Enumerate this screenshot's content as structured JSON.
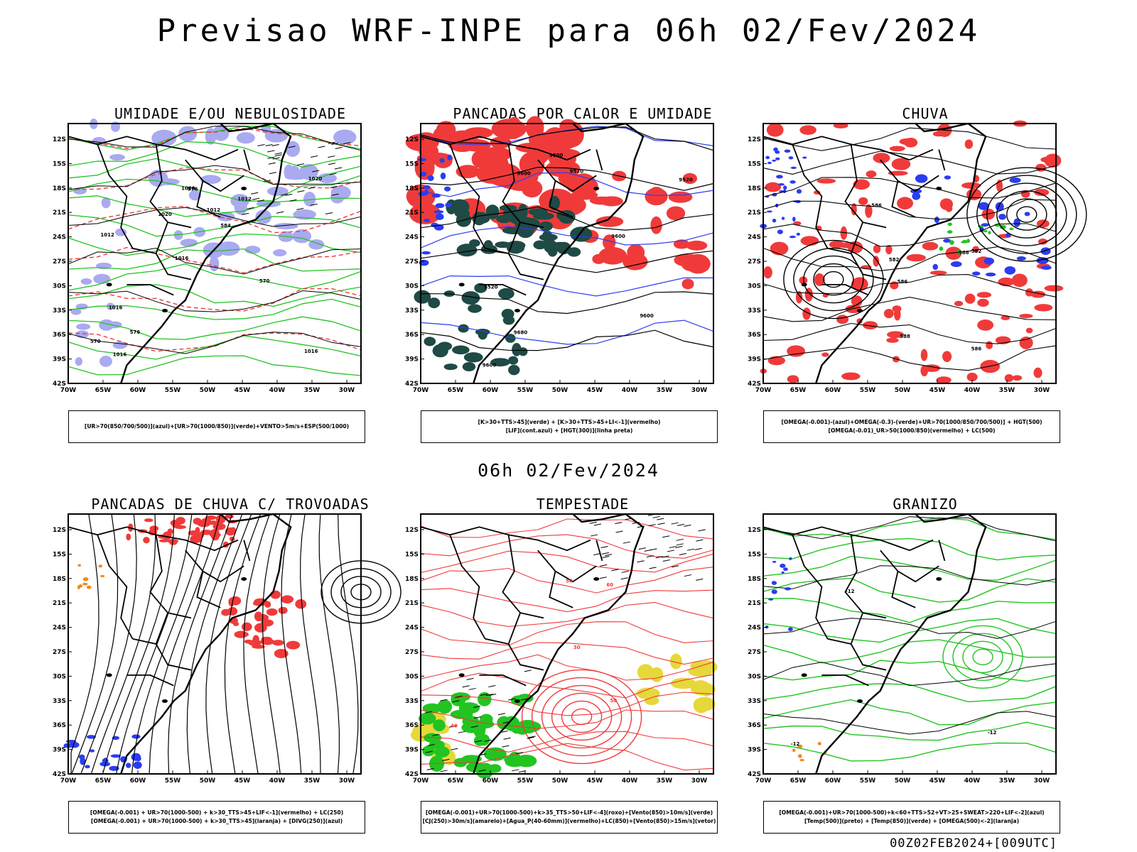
{
  "title": "Previsao WRF-INPE  para 06h 02/Fev/2024",
  "subtitle": "06h 02/Fev/2024",
  "run_stamp": "00Z02FEB2024+[009UTC]",
  "axes": {
    "lat_labels": [
      "12S",
      "15S",
      "18S",
      "21S",
      "24S",
      "27S",
      "30S",
      "33S",
      "36S",
      "39S",
      "42S"
    ],
    "lon_labels": [
      "70W",
      "65W",
      "60W",
      "55W",
      "50W",
      "45W",
      "40W",
      "35W",
      "30W"
    ]
  },
  "panels": [
    {
      "title": "UMIDADE E/OU NEBULOSIDADE",
      "legend": [
        "[UR>70(850/700/500)](azul)+[UR>70(1000/850)](verde)+VENTO>5m/s+ESP(500/1000)"
      ],
      "contour_labels": [
        "1016",
        "1012",
        "1020",
        "1016",
        "1012",
        "1016",
        "1020",
        "1012",
        "1016",
        "1020",
        "570",
        "576",
        "576",
        "584",
        "570"
      ]
    },
    {
      "title": "PANCADAS POR CALOR E UMIDADE",
      "legend": [
        "[K>30+TTS>45](verde) + [K>30+TTS>45+LI<-1](vermelho)",
        "[LIF](cont.azul) + [HGT(300)](linha preta)"
      ],
      "contour_labels": [
        "9600",
        "9600",
        "9680",
        "9600",
        "9600",
        "9520",
        "9600",
        "9520",
        "9520"
      ]
    },
    {
      "title": "CHUVA",
      "legend": [
        "[OMEGA(-0.001)-(azul)+OMEGA(-0.3)-(verde)+UR>70(1000/850/700/500)] + HGT(500)",
        "[OMEGA(-0.01)_UR>50(1000/850)(vermelho) + LC(500)"
      ],
      "contour_labels": [
        "588",
        "586",
        "582",
        "586",
        "588",
        "586",
        "582"
      ]
    },
    {
      "title": "PANCADAS DE CHUVA C/ TROVOADAS",
      "legend": [
        "[OMEGA(-0.001) + UR>70(1000-500) + k>30_TTS>45+LIF<-1](vermelho) + LC(250)",
        "[OMEGA(-0.001) + UR>70(1000-500) + k>30_TTS>45](laranja) + [DIVG(250)](azul)"
      ],
      "contour_labels": []
    },
    {
      "title": "TEMPESTADE",
      "legend": [
        "[OMEGA(-0.001)+UR>70(1000-500)+k>35_TTS>50+LIF<-4](roxo)+[Vento(850)>10m/s](verde)",
        "[CJ(250)>30m/s](amarelo)+[Agua_P(40-60mm)](vermelho)+LC(850)+[Vento(850)>15m/s](vetor)"
      ],
      "contour_labels": [
        "50",
        "60",
        "50",
        "40",
        "30"
      ]
    },
    {
      "title": "GRANIZO",
      "legend": [
        "[OMEGA(-0.001)+UR>70(1000-500)+k<60+TTS>52+VT>25+SWEAT>220+LIF<-2](azul)",
        "[Temp(500)](preto) + [Temp(850)](verde) + [OMEGA(500)<-2](laranja)"
      ],
      "contour_labels": [
        "-12",
        "-12",
        "-12"
      ]
    }
  ],
  "colors": {
    "red": "#f03a3a",
    "green": "#22c422",
    "blue": "#2a3df0",
    "lavender": "#a9aaf0",
    "darkteal": "#1f4a45",
    "yellow": "#e6d83a",
    "orange": "#f08a1e"
  }
}
